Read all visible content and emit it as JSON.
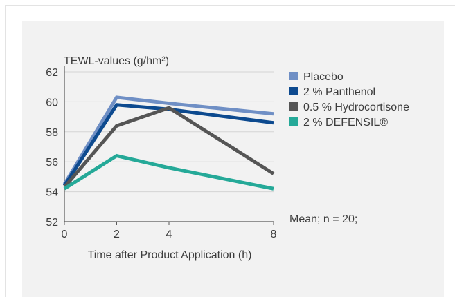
{
  "chart_data": {
    "type": "line",
    "ylabel": "TEWL-values (g/hm²)",
    "xlabel": "Time after Product Application (h)",
    "annotation": "Mean; n = 20;",
    "x": [
      0,
      2,
      4,
      8
    ],
    "xticks": [
      "0",
      "2",
      "4",
      "8"
    ],
    "yticks": [
      "52",
      "54",
      "56",
      "58",
      "60",
      "62"
    ],
    "xlim": [
      0,
      8
    ],
    "ylim": [
      52,
      62
    ],
    "grid": "horizontal",
    "legend_position": "right",
    "series": [
      {
        "name": "Placebo",
        "color": "#6f8fc5",
        "values": [
          54.5,
          60.3,
          59.9,
          59.2
        ]
      },
      {
        "name": "2 % Panthenol",
        "color": "#0d4a8f",
        "values": [
          54.4,
          59.8,
          59.5,
          58.6
        ]
      },
      {
        "name": "0.5 % Hydrocortisone",
        "color": "#555555",
        "values": [
          54.3,
          58.4,
          59.6,
          55.2
        ]
      },
      {
        "name": "2 % DEFENSIL®",
        "color": "#25a998",
        "values": [
          54.2,
          56.4,
          55.6,
          54.2
        ]
      }
    ]
  }
}
